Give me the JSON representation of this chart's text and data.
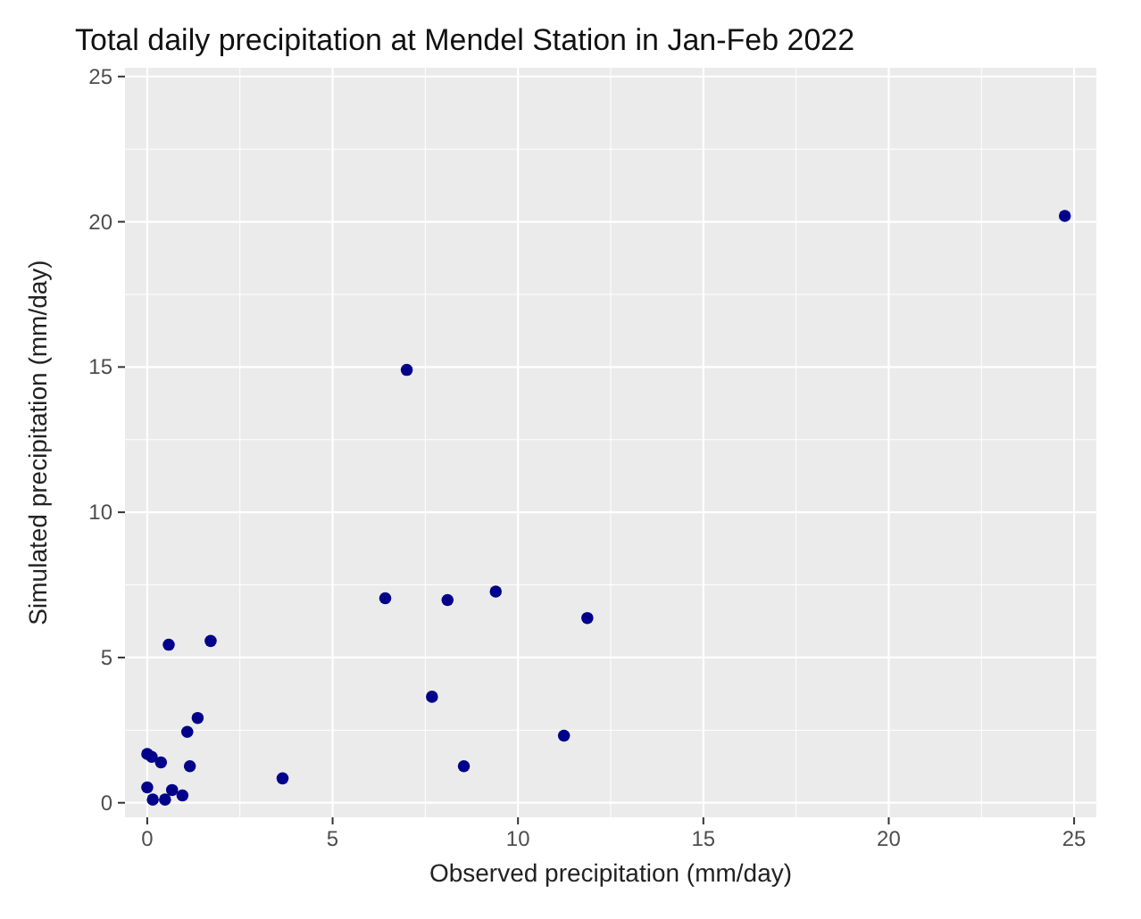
{
  "chart_data": {
    "type": "scatter",
    "title": "Total daily precipitation at Mendel Station in Jan-Feb 2022",
    "xlabel": "Observed precipitation (mm/day)",
    "ylabel": "Simulated precipitation (mm/day)",
    "x": [
      0,
      0.12,
      0.37,
      0,
      0.15,
      0.48,
      0.67,
      0.95,
      0.58,
      1.71,
      1.36,
      1.08,
      1.15,
      3.65,
      6.42,
      8.1,
      9.4,
      11.87,
      7.68,
      8.54,
      11.24,
      7.0,
      24.75
    ],
    "series": [
      {
        "color": "#00008b",
        "values": [
          1.68,
          1.58,
          1.39,
          0.53,
          0.11,
          0.11,
          0.44,
          0.25,
          5.44,
          5.57,
          2.92,
          2.44,
          1.26,
          0.84,
          7.04,
          6.98,
          7.27,
          6.36,
          3.65,
          1.26,
          2.31,
          14.9,
          20.2
        ]
      }
    ],
    "xlim": [
      -0.6,
      25.6
    ],
    "ylim": [
      -0.5,
      25.3
    ],
    "xticks": [
      0,
      5,
      10,
      15,
      20,
      25
    ],
    "yticks": [
      0,
      5,
      10,
      15,
      20,
      25
    ],
    "grid": true,
    "marker": "circle"
  }
}
